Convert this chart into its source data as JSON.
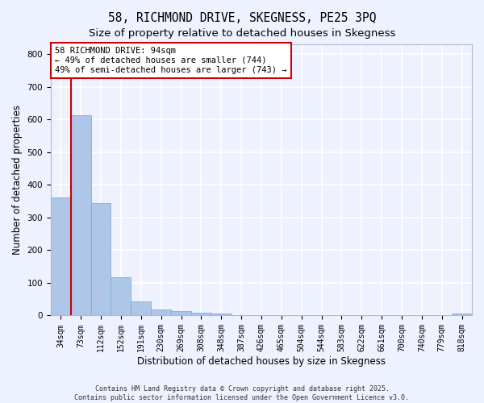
{
  "title": "58, RICHMOND DRIVE, SKEGNESS, PE25 3PQ",
  "subtitle": "Size of property relative to detached houses in Skegness",
  "xlabel": "Distribution of detached houses by size in Skegness",
  "ylabel": "Number of detached properties",
  "footer_line1": "Contains HM Land Registry data © Crown copyright and database right 2025.",
  "footer_line2": "Contains public sector information licensed under the Open Government Licence v3.0.",
  "bar_labels": [
    "34sqm",
    "73sqm",
    "112sqm",
    "152sqm",
    "191sqm",
    "230sqm",
    "269sqm",
    "308sqm",
    "348sqm",
    "387sqm",
    "426sqm",
    "465sqm",
    "504sqm",
    "544sqm",
    "583sqm",
    "622sqm",
    "661sqm",
    "700sqm",
    "740sqm",
    "779sqm",
    "818sqm"
  ],
  "bar_values": [
    362,
    614,
    345,
    117,
    44,
    18,
    14,
    8,
    5,
    0,
    0,
    0,
    0,
    0,
    0,
    0,
    0,
    0,
    0,
    0,
    5
  ],
  "bar_color": "#aec6e8",
  "bar_edge_color": "#7bafd4",
  "background_color": "#eef2ff",
  "grid_color": "#ffffff",
  "red_line_x": 0.5,
  "red_line_color": "#cc0000",
  "annotation_text": "58 RICHMOND DRIVE: 94sqm\n← 49% of detached houses are smaller (744)\n49% of semi-detached houses are larger (743) →",
  "annotation_box_color": "#ffffff",
  "annotation_box_edge": "#cc0000",
  "ylim": [
    0,
    830
  ],
  "yticks": [
    0,
    100,
    200,
    300,
    400,
    500,
    600,
    700,
    800
  ],
  "title_fontsize": 10.5,
  "subtitle_fontsize": 9.5,
  "axis_fontsize": 8.5,
  "tick_fontsize": 7,
  "annotation_fontsize": 7.5,
  "footer_fontsize": 6
}
